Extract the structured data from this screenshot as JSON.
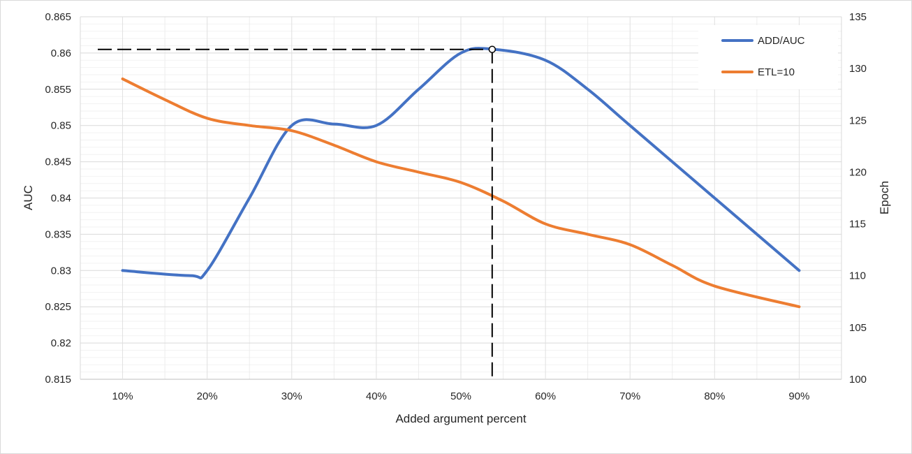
{
  "chart_data": {
    "type": "line",
    "title": "",
    "xlabel": "Added argument percent",
    "ylabel": "AUC",
    "y2label": "Epoch",
    "categories": [
      "10%",
      "20%",
      "30%",
      "40%",
      "50%",
      "60%",
      "70%",
      "80%",
      "90%"
    ],
    "x": [
      10,
      20,
      30,
      40,
      50,
      60,
      70,
      80,
      90
    ],
    "ylim": [
      0.815,
      0.865
    ],
    "y2lim": [
      100,
      135
    ],
    "yticks": [
      "0.815",
      "0.82",
      "0.825",
      "0.83",
      "0.835",
      "0.84",
      "0.845",
      "0.85",
      "0.855",
      "0.86",
      "0.865"
    ],
    "y2ticks": [
      "100",
      "105",
      "110",
      "115",
      "120",
      "125",
      "130",
      "135"
    ],
    "grid": true,
    "legend_position": "top-right",
    "series": [
      {
        "name": "ADD/AUC",
        "axis": "left",
        "color": "#4472C4",
        "x": [
          10,
          18,
          20,
          25,
          30,
          35,
          40,
          45,
          50,
          54,
          60,
          65,
          70,
          80,
          90
        ],
        "values": [
          0.83,
          0.8293,
          0.83,
          0.84,
          0.85,
          0.8502,
          0.85,
          0.855,
          0.86,
          0.8605,
          0.859,
          0.855,
          0.85,
          0.84,
          0.83
        ]
      },
      {
        "name": "ETL=10",
        "axis": "right",
        "color": "#ED7D31",
        "x": [
          10,
          15,
          20,
          25,
          30,
          35,
          40,
          45,
          50,
          55,
          60,
          65,
          70,
          75,
          80,
          90
        ],
        "values": [
          129.0,
          127.0,
          125.2,
          124.5,
          124.0,
          122.6,
          121.0,
          120.0,
          119.0,
          117.2,
          115.0,
          114.0,
          113.0,
          111.0,
          109.0,
          107.0
        ]
      }
    ],
    "annotation": {
      "type": "max-marker",
      "x": 53.7,
      "y": 0.8605,
      "style": "dashed",
      "color": "#000000"
    }
  }
}
